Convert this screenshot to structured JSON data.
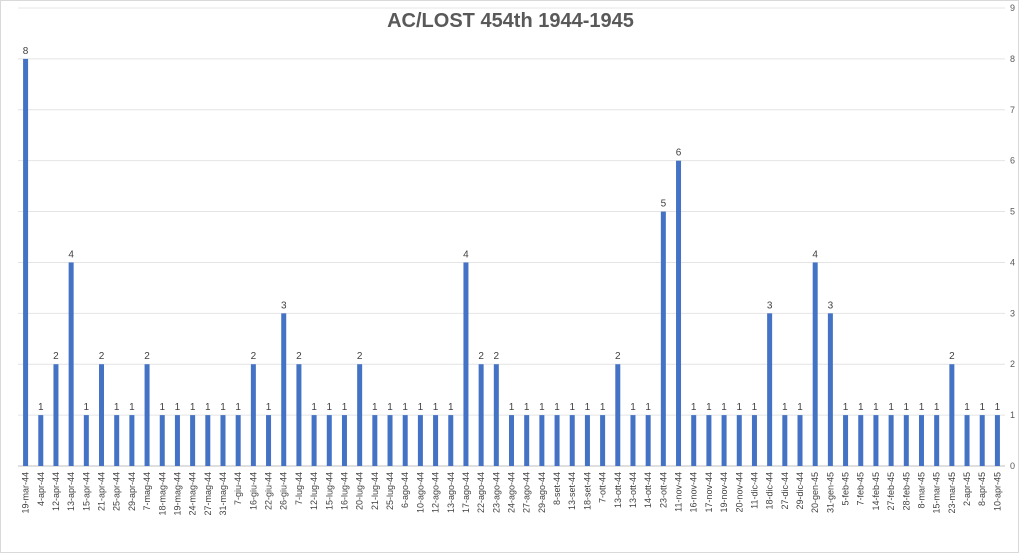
{
  "chart_data": {
    "type": "bar",
    "title": "AC/LOST 454th 1944-1945",
    "xlabel": "",
    "ylabel": "",
    "ylim": [
      0,
      9
    ],
    "yticks": [
      0,
      1,
      2,
      3,
      4,
      5,
      6,
      7,
      8,
      9
    ],
    "grid": true,
    "y_axis_side": "right",
    "legend": "none",
    "bar_color": "#4472c4",
    "categories": [
      "19-mar-44",
      "4-apr-44",
      "12-apr-44",
      "13-apr-44",
      "15-apr-44",
      "21-apr-44",
      "25-apr-44",
      "29-apr-44",
      "7-mag-44",
      "18-mag-44",
      "19-mag-44",
      "24-mag-44",
      "27-mag-44",
      "31-mag-44",
      "7-giu-44",
      "16-giu-44",
      "22-giu-44",
      "26-giu-44",
      "7-lug-44",
      "12-lug-44",
      "15-lug-44",
      "16-lug-44",
      "20-lug-44",
      "21-lug-44",
      "25-lug-44",
      "6-ago-44",
      "10-ago-44",
      "12-ago-44",
      "13-ago-44",
      "17-ago-44",
      "22-ago-44",
      "23-ago-44",
      "24-ago-44",
      "27-ago-44",
      "29-ago-44",
      "8-set-44",
      "13-set-44",
      "18-set-44",
      "7-ott-44",
      "13-ott-44",
      "13-ott-44",
      "14-ott-44",
      "23-ott-44",
      "11-nov-44",
      "16-nov-44",
      "17-nov-44",
      "19-nov-44",
      "20-nov-44",
      "11-dic-44",
      "18-dic-44",
      "27-dic-44",
      "29-dic-44",
      "20-gen-45",
      "31-gen-45",
      "5-feb-45",
      "7-feb-45",
      "14-feb-45",
      "27-feb-45",
      "28-feb-45",
      "8-mar-45",
      "15-mar-45",
      "23-mar-45",
      "2-apr-45",
      "8-apr-45",
      "10-apr-45"
    ],
    "values": [
      8,
      1,
      2,
      4,
      1,
      2,
      1,
      1,
      2,
      1,
      1,
      1,
      1,
      1,
      1,
      2,
      1,
      3,
      2,
      1,
      1,
      1,
      2,
      1,
      1,
      1,
      1,
      1,
      1,
      4,
      2,
      2,
      1,
      1,
      1,
      1,
      1,
      1,
      1,
      2,
      1,
      1,
      5,
      6,
      1,
      1,
      1,
      1,
      1,
      3,
      1,
      1,
      4,
      3,
      1,
      1,
      1,
      1,
      1,
      1,
      1,
      2,
      1,
      1,
      1
    ]
  }
}
